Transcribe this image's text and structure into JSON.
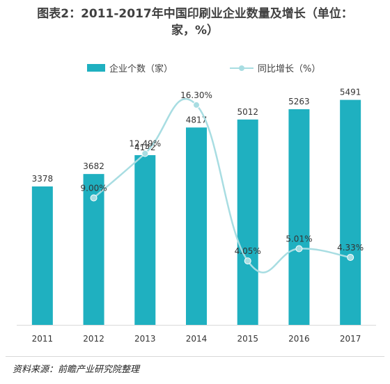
{
  "title_line1": "图表2：2011-2017年中国印刷业企业数量及增长（单位：",
  "title_line2": "家，%）",
  "source": "资料来源：前瞻产业研究院整理",
  "colors": {
    "bar": "#1fb0c0",
    "line": "#a8dde2",
    "marker": "#a8dde2"
  },
  "chart_data": {
    "type": "bar",
    "categories": [
      "2011",
      "2012",
      "2013",
      "2014",
      "2015",
      "2016",
      "2017"
    ],
    "series": [
      {
        "name": "企业个数（家）",
        "type": "bar",
        "values": [
          3378,
          3682,
          4142,
          4817,
          5012,
          5263,
          5491
        ],
        "labels": [
          "3378",
          "3682",
          "4142",
          "4817",
          "5012",
          "5263",
          "5491"
        ]
      },
      {
        "name": "同比增长（%）",
        "type": "line",
        "values": [
          null,
          9.0,
          12.49,
          16.3,
          4.05,
          5.01,
          4.33
        ],
        "labels": [
          "",
          "9.00%",
          "12.49%",
          "16.30%",
          "4.05%",
          "5.01%",
          "4.33%"
        ]
      }
    ],
    "legend_position": "top",
    "grid": false
  }
}
